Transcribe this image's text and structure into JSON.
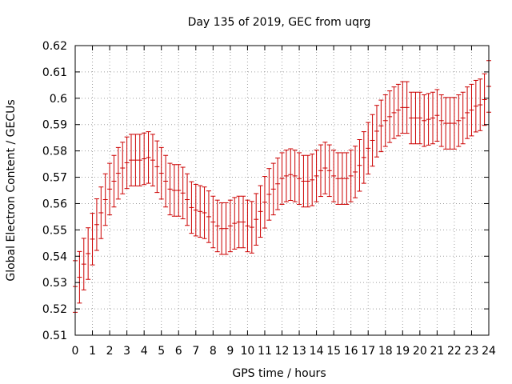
{
  "chart_data": {
    "type": "scatter",
    "title": "Day 135 of 2019, GEC from uqrg",
    "xlabel": "GPS time / hours",
    "ylabel": "Global Electron Content / GECUs",
    "xlim": [
      0,
      24
    ],
    "ylim": [
      0.51,
      0.62
    ],
    "x_ticks": [
      0,
      1,
      2,
      3,
      4,
      5,
      6,
      7,
      8,
      9,
      10,
      11,
      12,
      13,
      14,
      15,
      16,
      17,
      18,
      19,
      20,
      21,
      22,
      23,
      24
    ],
    "y_ticks": [
      "0.51",
      "0.52",
      "0.53",
      "0.54",
      "0.55",
      "0.56",
      "0.57",
      "0.58",
      "0.59",
      "0.6",
      "0.61",
      "0.62"
    ],
    "grid": true,
    "error_bar_half_width": 0.0098,
    "color": "#cc0000",
    "series": [
      {
        "x": [
          0,
          0.25,
          0.5,
          0.75,
          1,
          1.25,
          1.5,
          1.75,
          2,
          2.25,
          2.5,
          2.75,
          3,
          3.25,
          3.5,
          3.75,
          4,
          4.25,
          4.5,
          4.75,
          5,
          5.25,
          5.5,
          5.75,
          6,
          6.25,
          6.5,
          6.75,
          7,
          7.25,
          7.5,
          7.75,
          8,
          8.25,
          8.5,
          8.75,
          9,
          9.25,
          9.5,
          9.75,
          10,
          10.25,
          10.5,
          10.75,
          11,
          11.25,
          11.5,
          11.75,
          12,
          12.25,
          12.5,
          12.75,
          13,
          13.25,
          13.5,
          13.75,
          14,
          14.25,
          14.5,
          14.75,
          15,
          15.25,
          15.5,
          15.75,
          16,
          16.25,
          16.5,
          16.75,
          17,
          17.25,
          17.5,
          17.75,
          18,
          18.25,
          18.5,
          18.75,
          19,
          19.25,
          19.5,
          19.75,
          20,
          20.25,
          20.5,
          20.75,
          21,
          21.25,
          21.5,
          21.75,
          22,
          22.25,
          22.5,
          22.75,
          23,
          23.25,
          23.5,
          23.75,
          24
        ],
        "y": [
          0.5285,
          0.532,
          0.537,
          0.541,
          0.5465,
          0.552,
          0.5565,
          0.5615,
          0.5655,
          0.5685,
          0.5715,
          0.5735,
          0.5755,
          0.5765,
          0.5765,
          0.5765,
          0.577,
          0.5775,
          0.5765,
          0.574,
          0.5715,
          0.5685,
          0.5655,
          0.565,
          0.565,
          0.564,
          0.5615,
          0.5585,
          0.5575,
          0.557,
          0.5565,
          0.555,
          0.553,
          0.5515,
          0.5505,
          0.5505,
          0.5515,
          0.5525,
          0.553,
          0.553,
          0.5515,
          0.551,
          0.554,
          0.557,
          0.5605,
          0.5635,
          0.5655,
          0.5675,
          0.5695,
          0.5705,
          0.571,
          0.5705,
          0.5695,
          0.5685,
          0.5685,
          0.569,
          0.5705,
          0.5725,
          0.5735,
          0.5725,
          0.5705,
          0.5695,
          0.5695,
          0.5695,
          0.5705,
          0.572,
          0.5745,
          0.5775,
          0.581,
          0.584,
          0.5875,
          0.5895,
          0.5915,
          0.593,
          0.5945,
          0.5955,
          0.5965,
          0.5965,
          0.5925,
          0.5925,
          0.5925,
          0.5915,
          0.592,
          0.5925,
          0.5935,
          0.5915,
          0.5905,
          0.5905,
          0.5905,
          0.5915,
          0.5925,
          0.5945,
          0.5955,
          0.597,
          0.5975,
          0.5995,
          0.6045
        ]
      }
    ]
  }
}
